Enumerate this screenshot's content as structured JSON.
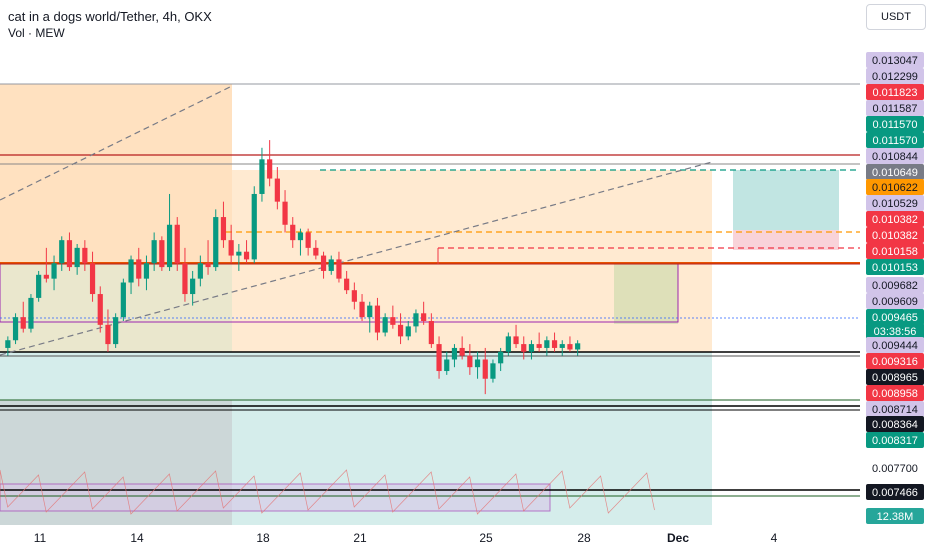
{
  "header": {
    "title": "cat in a dogs world/Tether, 4h, OKX",
    "subtitle": "Vol · MEW",
    "currency_button": "USDT"
  },
  "colors": {
    "up": "#089981",
    "down": "#f23645",
    "orange_zone": "#ffcc99",
    "teal_zone": "#b2dfdb",
    "pink_zone": "#f8c8cf",
    "purple_box": "#9c27b0",
    "dashed_orange": "#ff9800",
    "dashed_red": "#f23645",
    "dashed_green": "#089981"
  },
  "chart_data": {
    "type": "candlestick",
    "symbol": "cat in a dogs world/Tether",
    "interval": "4h",
    "exchange": "OKX",
    "ylim": [
      0.0071,
      0.0134
    ],
    "price_labels": [
      {
        "text": "0.013047",
        "style": "lav"
      },
      {
        "text": "0.012299",
        "style": "lav"
      },
      {
        "text": "0.011823",
        "style": "red"
      },
      {
        "text": "0.011587",
        "style": "lav"
      },
      {
        "text": "0.011570",
        "style": "green"
      },
      {
        "text": "0.011570",
        "style": "green"
      },
      {
        "text": "0.010844",
        "style": "lav"
      },
      {
        "text": "0.010649",
        "style": "gray"
      },
      {
        "text": "0.010622",
        "style": "orange"
      },
      {
        "text": "0.010529",
        "style": "lav"
      },
      {
        "text": "0.010382",
        "style": "red"
      },
      {
        "text": "0.010382",
        "style": "red"
      },
      {
        "text": "0.010158",
        "style": "red"
      },
      {
        "text": "0.010153",
        "style": "green"
      },
      {
        "text": "0.009682",
        "style": "lav"
      },
      {
        "text": "0.009609",
        "style": "lav"
      },
      {
        "text": "0.009465",
        "style": "green"
      },
      {
        "text": "03:38:56",
        "style": "green"
      },
      {
        "text": "0.009444",
        "style": "lav"
      },
      {
        "text": "0.009316",
        "style": "red"
      },
      {
        "text": "0.008965",
        "style": "black"
      },
      {
        "text": "0.008958",
        "style": "red"
      },
      {
        "text": "0.008714",
        "style": "lav"
      },
      {
        "text": "0.008364",
        "style": "black"
      },
      {
        "text": "0.008317",
        "style": "green"
      },
      {
        "text": "0.007700",
        "style": "plain"
      },
      {
        "text": "0.007466",
        "style": "black"
      },
      {
        "text": "12.38M",
        "style": "teal"
      }
    ],
    "x_ticks": [
      "11",
      "14",
      "18",
      "21",
      "25",
      "28",
      "Dec",
      "4"
    ],
    "current_price": 0.009465,
    "volume_label": "12.38M",
    "candles": [
      [
        0.0094,
        0.00955,
        0.0093,
        0.0095
      ],
      [
        0.0095,
        0.00985,
        0.00945,
        0.0098
      ],
      [
        0.0098,
        0.01,
        0.0096,
        0.00965
      ],
      [
        0.00965,
        0.0101,
        0.0096,
        0.01005
      ],
      [
        0.01005,
        0.0104,
        0.01,
        0.01035
      ],
      [
        0.01035,
        0.0107,
        0.01025,
        0.0103
      ],
      [
        0.0103,
        0.0106,
        0.01015,
        0.0105
      ],
      [
        0.0105,
        0.01085,
        0.0104,
        0.0108
      ],
      [
        0.0108,
        0.0109,
        0.0104,
        0.01045
      ],
      [
        0.01045,
        0.01075,
        0.01035,
        0.0107
      ],
      [
        0.0107,
        0.0108,
        0.0104,
        0.0105
      ],
      [
        0.0105,
        0.01065,
        0.01,
        0.0101
      ],
      [
        0.0101,
        0.0102,
        0.0096,
        0.0097
      ],
      [
        0.0097,
        0.0099,
        0.00935,
        0.00945
      ],
      [
        0.00945,
        0.00985,
        0.0094,
        0.0098
      ],
      [
        0.0098,
        0.0103,
        0.00975,
        0.01025
      ],
      [
        0.01025,
        0.0106,
        0.0101,
        0.01055
      ],
      [
        0.01055,
        0.0107,
        0.0102,
        0.0103
      ],
      [
        0.0103,
        0.0106,
        0.01015,
        0.0105
      ],
      [
        0.0105,
        0.0109,
        0.0104,
        0.0108
      ],
      [
        0.0108,
        0.01085,
        0.0104,
        0.01045
      ],
      [
        0.01045,
        0.0114,
        0.0104,
        0.011
      ],
      [
        0.011,
        0.0111,
        0.0104,
        0.0105
      ],
      [
        0.0105,
        0.0107,
        0.01,
        0.0101
      ],
      [
        0.0101,
        0.0104,
        0.00995,
        0.0103
      ],
      [
        0.0103,
        0.0106,
        0.0102,
        0.0105
      ],
      [
        0.0105,
        0.0108,
        0.01035,
        0.01045
      ],
      [
        0.01045,
        0.0112,
        0.0104,
        0.0111
      ],
      [
        0.0111,
        0.0113,
        0.0107,
        0.0108
      ],
      [
        0.0108,
        0.011,
        0.0105,
        0.0106
      ],
      [
        0.0106,
        0.01075,
        0.0104,
        0.01065
      ],
      [
        0.01065,
        0.0108,
        0.0105,
        0.01055
      ],
      [
        0.01055,
        0.0115,
        0.0105,
        0.0114
      ],
      [
        0.0114,
        0.012,
        0.0113,
        0.01185
      ],
      [
        0.01185,
        0.0121,
        0.0115,
        0.0116
      ],
      [
        0.0116,
        0.01175,
        0.0112,
        0.0113
      ],
      [
        0.0113,
        0.01145,
        0.0109,
        0.011
      ],
      [
        0.011,
        0.0111,
        0.0107,
        0.0108
      ],
      [
        0.0108,
        0.01095,
        0.0106,
        0.0109
      ],
      [
        0.0109,
        0.01095,
        0.0106,
        0.0107
      ],
      [
        0.0107,
        0.0108,
        0.01055,
        0.0106
      ],
      [
        0.0106,
        0.01065,
        0.0103,
        0.0104
      ],
      [
        0.0104,
        0.0106,
        0.01035,
        0.01055
      ],
      [
        0.01055,
        0.01065,
        0.01025,
        0.0103
      ],
      [
        0.0103,
        0.0104,
        0.0101,
        0.01015
      ],
      [
        0.01015,
        0.01025,
        0.0099,
        0.01
      ],
      [
        0.01,
        0.0101,
        0.00975,
        0.0098
      ],
      [
        0.0098,
        0.01,
        0.0096,
        0.00995
      ],
      [
        0.00995,
        0.01005,
        0.0095,
        0.0096
      ],
      [
        0.0096,
        0.00985,
        0.00955,
        0.0098
      ],
      [
        0.0098,
        0.00995,
        0.00965,
        0.0097
      ],
      [
        0.0097,
        0.00985,
        0.00945,
        0.00955
      ],
      [
        0.00955,
        0.00975,
        0.0095,
        0.00968
      ],
      [
        0.00968,
        0.0099,
        0.0096,
        0.00985
      ],
      [
        0.00985,
        0.01,
        0.0097,
        0.00975
      ],
      [
        0.00975,
        0.00985,
        0.0094,
        0.00945
      ],
      [
        0.00945,
        0.00955,
        0.009,
        0.0091
      ],
      [
        0.0091,
        0.00935,
        0.00905,
        0.00925
      ],
      [
        0.00925,
        0.00945,
        0.00915,
        0.0094
      ],
      [
        0.0094,
        0.00955,
        0.00925,
        0.0093
      ],
      [
        0.0093,
        0.00945,
        0.00905,
        0.00915
      ],
      [
        0.00915,
        0.00935,
        0.009,
        0.00925
      ],
      [
        0.00925,
        0.0094,
        0.0088,
        0.009
      ],
      [
        0.009,
        0.00925,
        0.00895,
        0.0092
      ],
      [
        0.0092,
        0.0094,
        0.0091,
        0.00935
      ],
      [
        0.00935,
        0.0096,
        0.0093,
        0.00955
      ],
      [
        0.00955,
        0.0097,
        0.0094,
        0.00945
      ],
      [
        0.00945,
        0.00955,
        0.00925,
        0.00935
      ],
      [
        0.00935,
        0.0095,
        0.00925,
        0.00945
      ],
      [
        0.00945,
        0.0096,
        0.00935,
        0.0094
      ],
      [
        0.0094,
        0.00955,
        0.0093,
        0.0095
      ],
      [
        0.0095,
        0.0096,
        0.00935,
        0.0094
      ],
      [
        0.0094,
        0.0095,
        0.0093,
        0.00945
      ],
      [
        0.00945,
        0.00955,
        0.00935,
        0.00938
      ],
      [
        0.00938,
        0.0095,
        0.0093,
        0.00946
      ]
    ]
  }
}
